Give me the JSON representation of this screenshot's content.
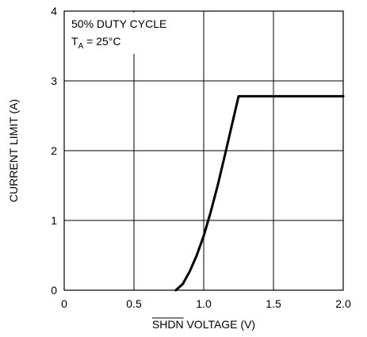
{
  "chart_data": {
    "type": "line",
    "xlabel": "SHDN VOLTAGE (V)",
    "xlabel_overline": "SHDN",
    "ylabel": "CURRENT LIMIT (A)",
    "xlim": [
      0,
      2.0
    ],
    "ylim": [
      0,
      4
    ],
    "x_ticks": [
      "0",
      "0.5",
      "1.0",
      "1.5",
      "2.0"
    ],
    "y_ticks": [
      "0",
      "1",
      "2",
      "3",
      "4"
    ],
    "grid": true,
    "annotation": {
      "line1": "50% DUTY CYCLE",
      "line2_prefix": "T",
      "line2_sub": "A",
      "line2_suffix": " = 25°C"
    },
    "series": [
      {
        "x": [
          0.8,
          0.85,
          0.9,
          0.95,
          1.0,
          1.05,
          1.1,
          1.15,
          1.2,
          1.25,
          1.5,
          2.0
        ],
        "y": [
          0.0,
          0.09,
          0.27,
          0.5,
          0.78,
          1.12,
          1.5,
          1.92,
          2.35,
          2.78,
          2.78,
          2.78
        ]
      }
    ]
  }
}
